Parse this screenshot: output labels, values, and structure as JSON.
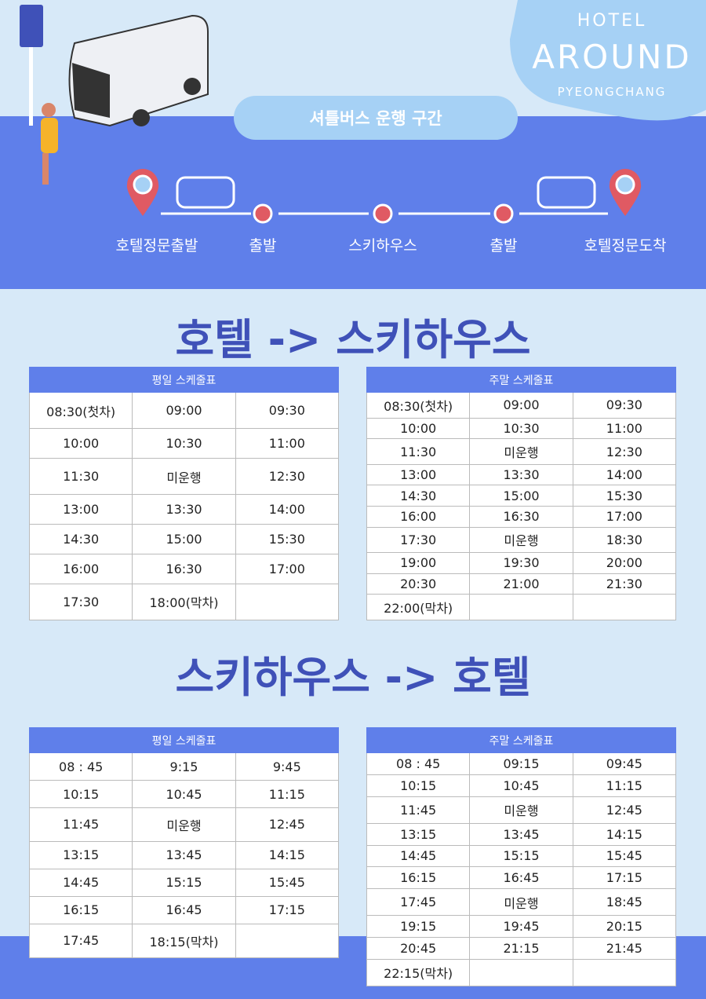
{
  "logo": {
    "line1": "HOTEL",
    "line2": "AROUND",
    "line3": "PYEONGCHANG"
  },
  "route": {
    "title": "셔틀버스 운행 구간",
    "stops": [
      "호텔정문출발",
      "출발",
      "스키하우스",
      "출발",
      "호텔정문도착"
    ]
  },
  "sections": [
    {
      "title": "호텔 -> 스키하우스",
      "tables": [
        {
          "caption": "평일 스케줄표",
          "rows": [
            [
              "08:30(첫차)",
              "09:00",
              "09:30"
            ],
            [
              "10:00",
              "10:30",
              "11:00"
            ],
            [
              "11:30",
              "미운행",
              "12:30"
            ],
            [
              "13:00",
              "13:30",
              "14:00"
            ],
            [
              "14:30",
              "15:00",
              "15:30"
            ],
            [
              "16:00",
              "16:30",
              "17:00"
            ],
            [
              "17:30",
              "18:00(막차)",
              null
            ]
          ]
        },
        {
          "caption": "주말 스케줄표",
          "rows": [
            [
              "08:30(첫차)",
              "09:00",
              "09:30"
            ],
            [
              "10:00",
              "10:30",
              "11:00"
            ],
            [
              "11:30",
              "미운행",
              "12:30"
            ],
            [
              "13:00",
              "13:30",
              "14:00"
            ],
            [
              "14:30",
              "15:00",
              "15:30"
            ],
            [
              "16:00",
              "16:30",
              "17:00"
            ],
            [
              "17:30",
              "미운행",
              "18:30"
            ],
            [
              "19:00",
              "19:30",
              "20:00"
            ],
            [
              "20:30",
              "21:00",
              "21:30"
            ],
            [
              "22:00(막차)",
              null,
              null
            ]
          ]
        }
      ]
    },
    {
      "title": "스키하우스 -> 호텔",
      "tables": [
        {
          "caption": "평일 스케줄표",
          "rows": [
            [
              "08 : 45",
              "9:15",
              "9:45"
            ],
            [
              "10:15",
              "10:45",
              "11:15"
            ],
            [
              "11:45",
              "미운행",
              "12:45"
            ],
            [
              "13:15",
              "13:45",
              "14:15"
            ],
            [
              "14:45",
              "15:15",
              "15:45"
            ],
            [
              "16:15",
              "16:45",
              "17:15"
            ],
            [
              "17:45",
              "18:15(막차)",
              null
            ]
          ]
        },
        {
          "caption": "주말 스케줄표",
          "rows": [
            [
              "08 : 45",
              "09:15",
              "09:45"
            ],
            [
              "10:15",
              "10:45",
              "11:15"
            ],
            [
              "11:45",
              "미운행",
              "12:45"
            ],
            [
              "13:15",
              "13:45",
              "14:15"
            ],
            [
              "14:45",
              "15:15",
              "15:45"
            ],
            [
              "16:15",
              "16:45",
              "17:15"
            ],
            [
              "17:45",
              "미운행",
              "18:45"
            ],
            [
              "19:15",
              "19:45",
              "20:15"
            ],
            [
              "20:45",
              "21:15",
              "21:45"
            ],
            [
              "22:15(막차)",
              null,
              null
            ]
          ]
        }
      ]
    }
  ]
}
